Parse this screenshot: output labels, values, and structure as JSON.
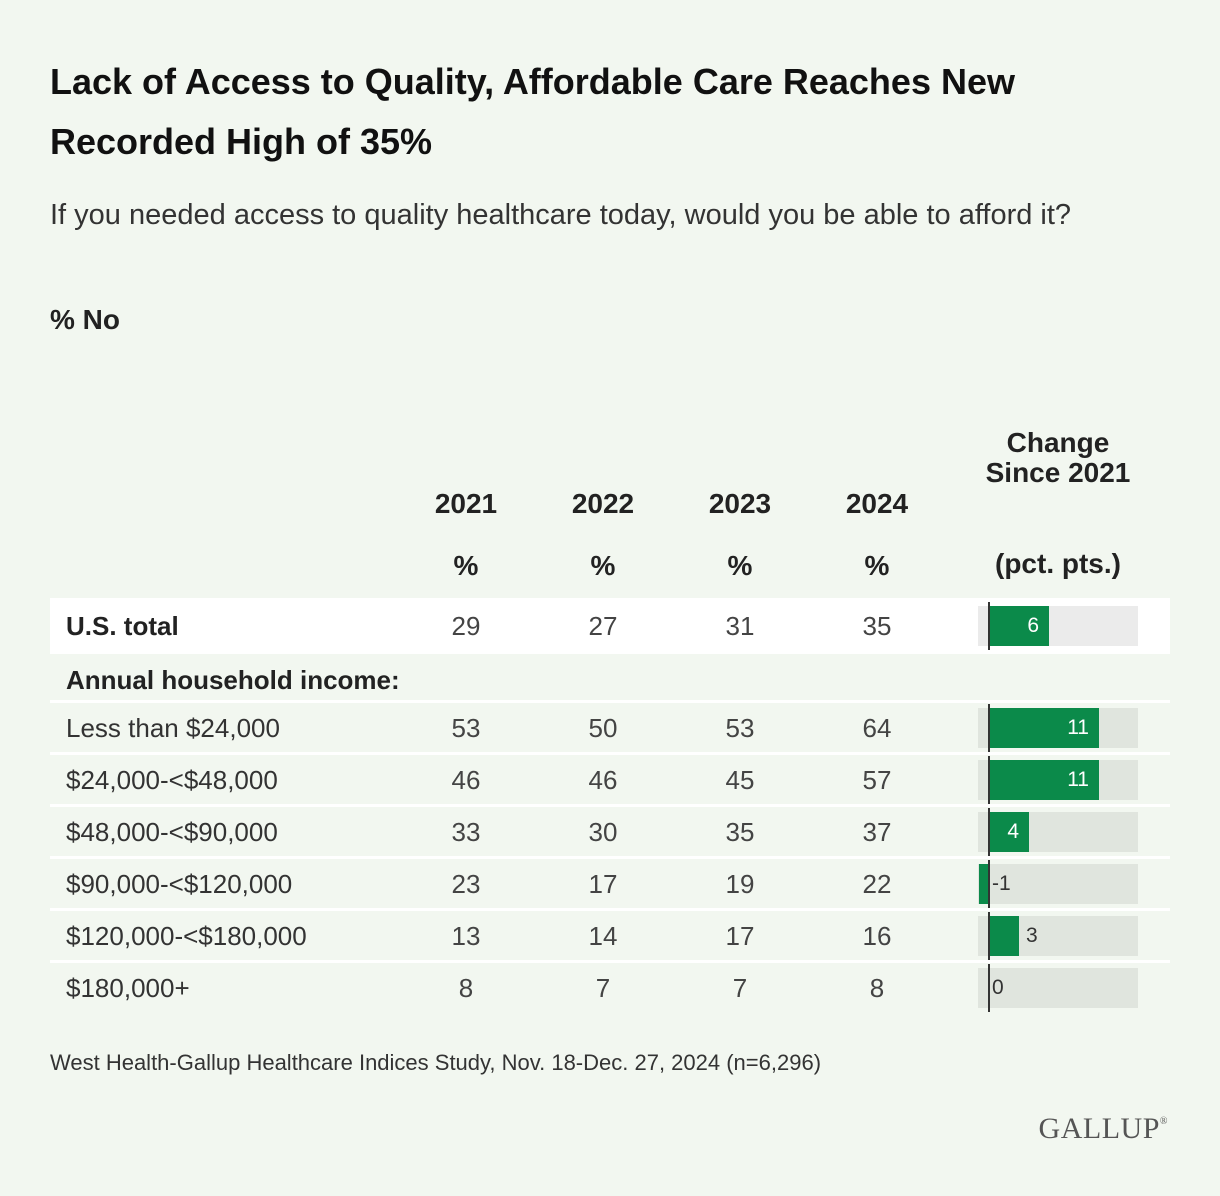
{
  "title": "Lack of Access to Quality, Affordable Care Reaches New Recorded High of 35%",
  "subtitle": "If you needed access to quality healthcare today, would you be able to afford it?",
  "measure": "% No",
  "columns": {
    "years": [
      "2021",
      "2022",
      "2023",
      "2024"
    ],
    "unit": "%",
    "change_header": "Change Since 2021",
    "change_unit": "(pct. pts.)"
  },
  "group_label": "Annual household income:",
  "source": "West Health-Gallup Healthcare Indices Study, Nov. 18-Dec. 27, 2024 (n=6,296)",
  "logo_text": "GALLUP",
  "colors": {
    "background": "#f2f7f0",
    "bar": "#0b8a4a",
    "bar_track": "#e0e5de"
  },
  "chart_data": {
    "type": "table",
    "title": "Lack of Access to Quality, Affordable Care Reaches New Recorded High of 35%",
    "columns": [
      "2021",
      "2022",
      "2023",
      "2024",
      "Change Since 2021"
    ],
    "rows": [
      {
        "label": "U.S. total",
        "values": [
          29,
          27,
          31,
          35
        ],
        "change": 6
      },
      {
        "label": "Less than $24,000",
        "values": [
          53,
          50,
          53,
          64
        ],
        "change": 11
      },
      {
        "label": "$24,000-<$48,000",
        "values": [
          46,
          46,
          45,
          57
        ],
        "change": 11
      },
      {
        "label": "$48,000-<$90,000",
        "values": [
          33,
          30,
          35,
          37
        ],
        "change": 4
      },
      {
        "label": "$90,000-<$120,000",
        "values": [
          23,
          17,
          19,
          22
        ],
        "change": -1
      },
      {
        "label": "$120,000-<$180,000",
        "values": [
          13,
          14,
          17,
          16
        ],
        "change": 3
      },
      {
        "label": "$180,000+",
        "values": [
          8,
          7,
          7,
          8
        ],
        "change": 0
      }
    ],
    "change_range": [
      -1,
      14
    ]
  }
}
